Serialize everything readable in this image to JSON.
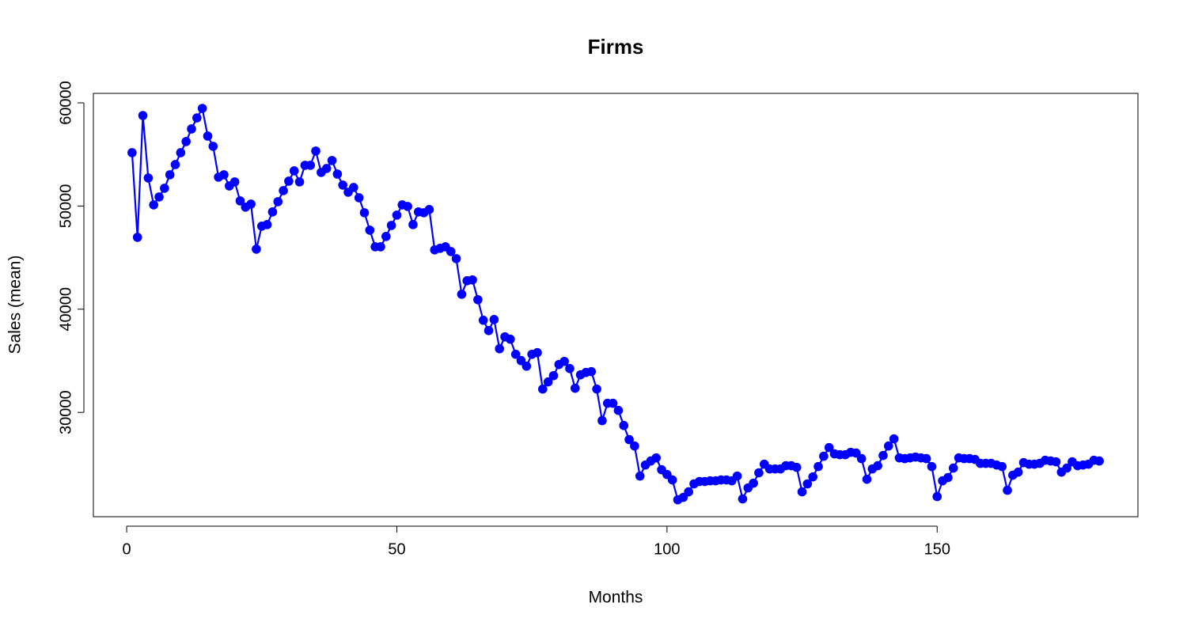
{
  "chart_data": {
    "type": "line",
    "title": "Firms",
    "x_label": "Months",
    "y_label": "Sales (mean)",
    "x": [
      1,
      2,
      3,
      4,
      5,
      6,
      7,
      8,
      9,
      10,
      11,
      12,
      13,
      14,
      15,
      16,
      17,
      18,
      19,
      20,
      21,
      22,
      23,
      24,
      25,
      26,
      27,
      28,
      29,
      30,
      31,
      32,
      33,
      34,
      35,
      36,
      37,
      38,
      39,
      40,
      41,
      42,
      43,
      44,
      45,
      46,
      47,
      48,
      49,
      50,
      51,
      52,
      53,
      54,
      55,
      56,
      57,
      58,
      59,
      60,
      61,
      62,
      63,
      64,
      65,
      66,
      67,
      68,
      69,
      70,
      71,
      72,
      73,
      74,
      75,
      76,
      77,
      78,
      79,
      80,
      81,
      82,
      83,
      84,
      85,
      86,
      87,
      88,
      89,
      90,
      91,
      92,
      93,
      94,
      95,
      96,
      97,
      98,
      99,
      100,
      101,
      102,
      103,
      104,
      105,
      106,
      107,
      108,
      109,
      110,
      111,
      112,
      113,
      114,
      115,
      116,
      117,
      118,
      119,
      120,
      121,
      122,
      123,
      124,
      125,
      126,
      127,
      128,
      129,
      130,
      131,
      132,
      133,
      134,
      135,
      136,
      137,
      138,
      139,
      140,
      141,
      142,
      143,
      144,
      145,
      146,
      147,
      148,
      149,
      150,
      151,
      152,
      153,
      154,
      155,
      156,
      157,
      158,
      159,
      160,
      161,
      162,
      163,
      164,
      165,
      166,
      167,
      168,
      169,
      170,
      171,
      172,
      173,
      174,
      175,
      176,
      177,
      178,
      179,
      180
    ],
    "series": [
      {
        "name": "Sales (mean)",
        "color": "#0000ff",
        "values": [
          55170,
          46970,
          58770,
          52720,
          50110,
          50880,
          51720,
          53030,
          54020,
          55170,
          56250,
          57470,
          58540,
          59460,
          56780,
          55790,
          52800,
          53030,
          51950,
          52340,
          50500,
          49890,
          50190,
          45820,
          48050,
          48200,
          49430,
          50420,
          51490,
          52410,
          53410,
          52340,
          53950,
          53950,
          55330,
          53260,
          53640,
          54410,
          53100,
          52030,
          51340,
          51800,
          50800,
          49350,
          47660,
          46050,
          46050,
          47050,
          48120,
          49120,
          50110,
          49960,
          48200,
          49430,
          49350,
          49660,
          45750,
          45900,
          46050,
          45590,
          44900,
          41450,
          42760,
          42840,
          40920,
          38930,
          37930,
          39000,
          36170,
          37320,
          37090,
          35630,
          35020,
          34480,
          35630,
          35790,
          32260,
          32950,
          33560,
          34640,
          34940,
          34250,
          32340,
          33640,
          33870,
          33950,
          32260,
          29200,
          30880,
          30880,
          30190,
          28730,
          27360,
          26740,
          23830,
          24900,
          25290,
          25590,
          24440,
          23980,
          23450,
          21530,
          21760,
          22300,
          23070,
          23300,
          23300,
          23370,
          23370,
          23450,
          23450,
          23370,
          23830,
          21610,
          22680,
          23140,
          24140,
          24980,
          24520,
          24520,
          24520,
          24830,
          24830,
          24670,
          22300,
          23070,
          23750,
          24750,
          25750,
          26590,
          25980,
          25900,
          25900,
          26130,
          26060,
          25520,
          23520,
          24520,
          24830,
          25820,
          26740,
          27430,
          25590,
          25520,
          25590,
          25670,
          25590,
          25520,
          24750,
          21840,
          23370,
          23680,
          24600,
          25590,
          25520,
          25520,
          25440,
          25060,
          25060,
          25060,
          24900,
          24750,
          22450,
          23910,
          24210,
          25130,
          24980,
          24980,
          25060,
          25360,
          25290,
          25210,
          24210,
          24600,
          25210,
          24830,
          24900,
          24980,
          25360,
          25290
        ]
      }
    ],
    "xlim": [
      -6.16,
      187.16
    ],
    "ylim": [
      19890,
      60920
    ],
    "xticks": [
      0,
      50,
      100,
      150
    ],
    "yticks": [
      30000,
      40000,
      50000,
      60000
    ]
  }
}
